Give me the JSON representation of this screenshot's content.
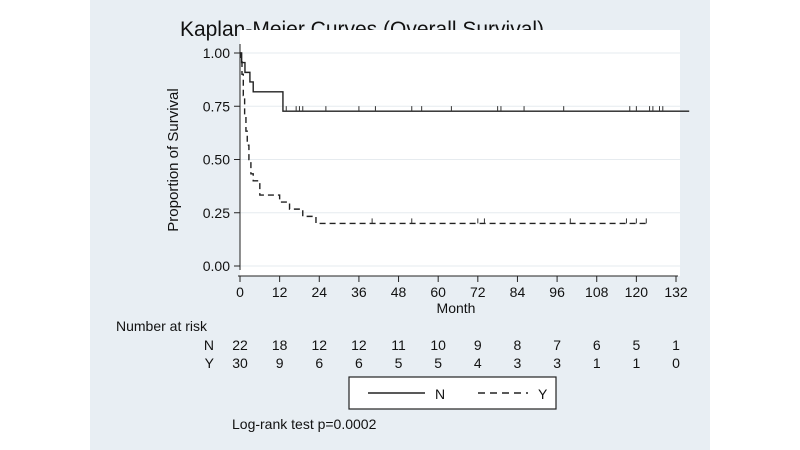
{
  "chart_data": {
    "type": "line",
    "title": "Kaplan-Meier Curves (Overall Survival)",
    "xlabel": "Month",
    "ylabel": "Proportion of Survival",
    "xlim": [
      0,
      132
    ],
    "ylim": [
      0,
      1
    ],
    "xticks": [
      0,
      12,
      24,
      36,
      48,
      60,
      72,
      84,
      96,
      108,
      120,
      132
    ],
    "yticks": [
      0,
      0.25,
      0.5,
      0.75,
      1.0
    ],
    "ytick_labels": [
      "0.00",
      "0.25",
      "0.50",
      "0.75",
      "1.00"
    ],
    "grid": true,
    "legend_position": "bottom-center, boxed",
    "series": [
      {
        "name": "N",
        "style": "solid",
        "steps": [
          [
            0,
            1.0
          ],
          [
            0.5,
            0.955
          ],
          [
            1.5,
            0.909
          ],
          [
            3,
            0.864
          ],
          [
            4,
            0.818
          ],
          [
            13,
            0.727
          ],
          [
            136,
            0.727
          ]
        ],
        "censored": [
          14,
          17,
          18,
          19,
          26,
          36,
          41,
          52,
          55,
          64,
          78,
          79,
          86,
          98,
          118,
          120,
          124,
          125,
          127,
          128
        ]
      },
      {
        "name": "Y",
        "style": "dashed",
        "steps": [
          [
            0,
            1.0
          ],
          [
            0.3,
            0.967
          ],
          [
            0.6,
            0.9
          ],
          [
            1,
            0.8
          ],
          [
            1.4,
            0.7
          ],
          [
            1.8,
            0.633
          ],
          [
            2.2,
            0.567
          ],
          [
            2.7,
            0.5
          ],
          [
            3.3,
            0.433
          ],
          [
            4,
            0.4
          ],
          [
            6,
            0.333
          ],
          [
            12,
            0.3
          ],
          [
            15,
            0.267
          ],
          [
            19,
            0.233
          ],
          [
            23,
            0.2
          ],
          [
            124,
            0.2
          ]
        ],
        "censored": [
          40,
          52,
          72,
          74,
          100,
          117,
          120,
          123
        ]
      }
    ],
    "risk_table": {
      "title": "Number at risk",
      "times": [
        0,
        12,
        24,
        36,
        48,
        60,
        72,
        84,
        96,
        108,
        120,
        132
      ],
      "rows": [
        {
          "label": "N",
          "counts": [
            "22",
            "18",
            "12",
            "12",
            "11",
            "10",
            "9",
            "8",
            "7",
            "6",
            "5",
            "1"
          ]
        },
        {
          "label": "Y",
          "counts": [
            "30",
            "9",
            "6",
            "6",
            "5",
            "5",
            "4",
            "3",
            "3",
            "1",
            "1",
            "0"
          ]
        }
      ]
    },
    "legend": [
      {
        "label": "N",
        "style": "solid"
      },
      {
        "label": "Y",
        "style": "dashed"
      }
    ],
    "annotation": "Log-rank test p=0.0002"
  }
}
